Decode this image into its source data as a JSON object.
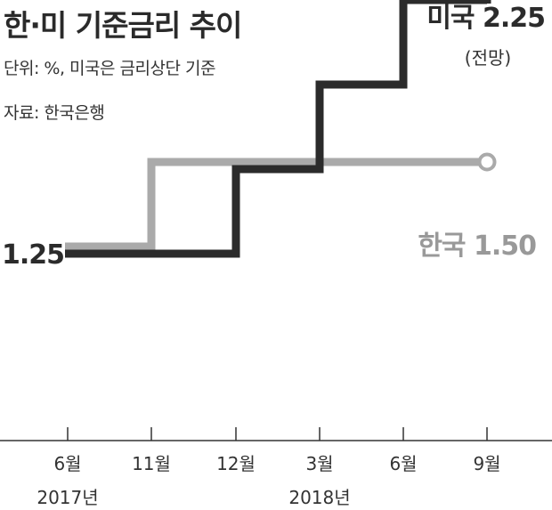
{
  "header": {
    "title": "한·미 기준금리 추이",
    "unit_note": "단위: %, 미국은 금리상단 기준",
    "source_note": "자료: 한국은행"
  },
  "chart_data": {
    "type": "line",
    "step": true,
    "title": "한·미 기준금리 추이",
    "xlabel": "",
    "ylabel": "",
    "x_tick_labels": [
      "6월",
      "11월",
      "12월",
      "3월",
      "6월",
      "9월"
    ],
    "x_year_labels": [
      {
        "label": "2017년",
        "under_tick": 0
      },
      {
        "label": "2018년",
        "under_tick": 3
      }
    ],
    "ylim": [
      1.0,
      2.5
    ],
    "start_label": "1.25",
    "series": [
      {
        "name": "한국",
        "color": "#aaaaaa",
        "end_label": "한국 1.50",
        "values": [
          1.25,
          1.5,
          1.5,
          1.5,
          1.5,
          1.5
        ]
      },
      {
        "name": "미국",
        "color": "#2b2b2b",
        "end_label": "미국 2.25",
        "end_note": "(전망)",
        "projected_last": true,
        "values": [
          1.25,
          1.25,
          1.5,
          1.75,
          2.0,
          2.25
        ]
      }
    ]
  }
}
